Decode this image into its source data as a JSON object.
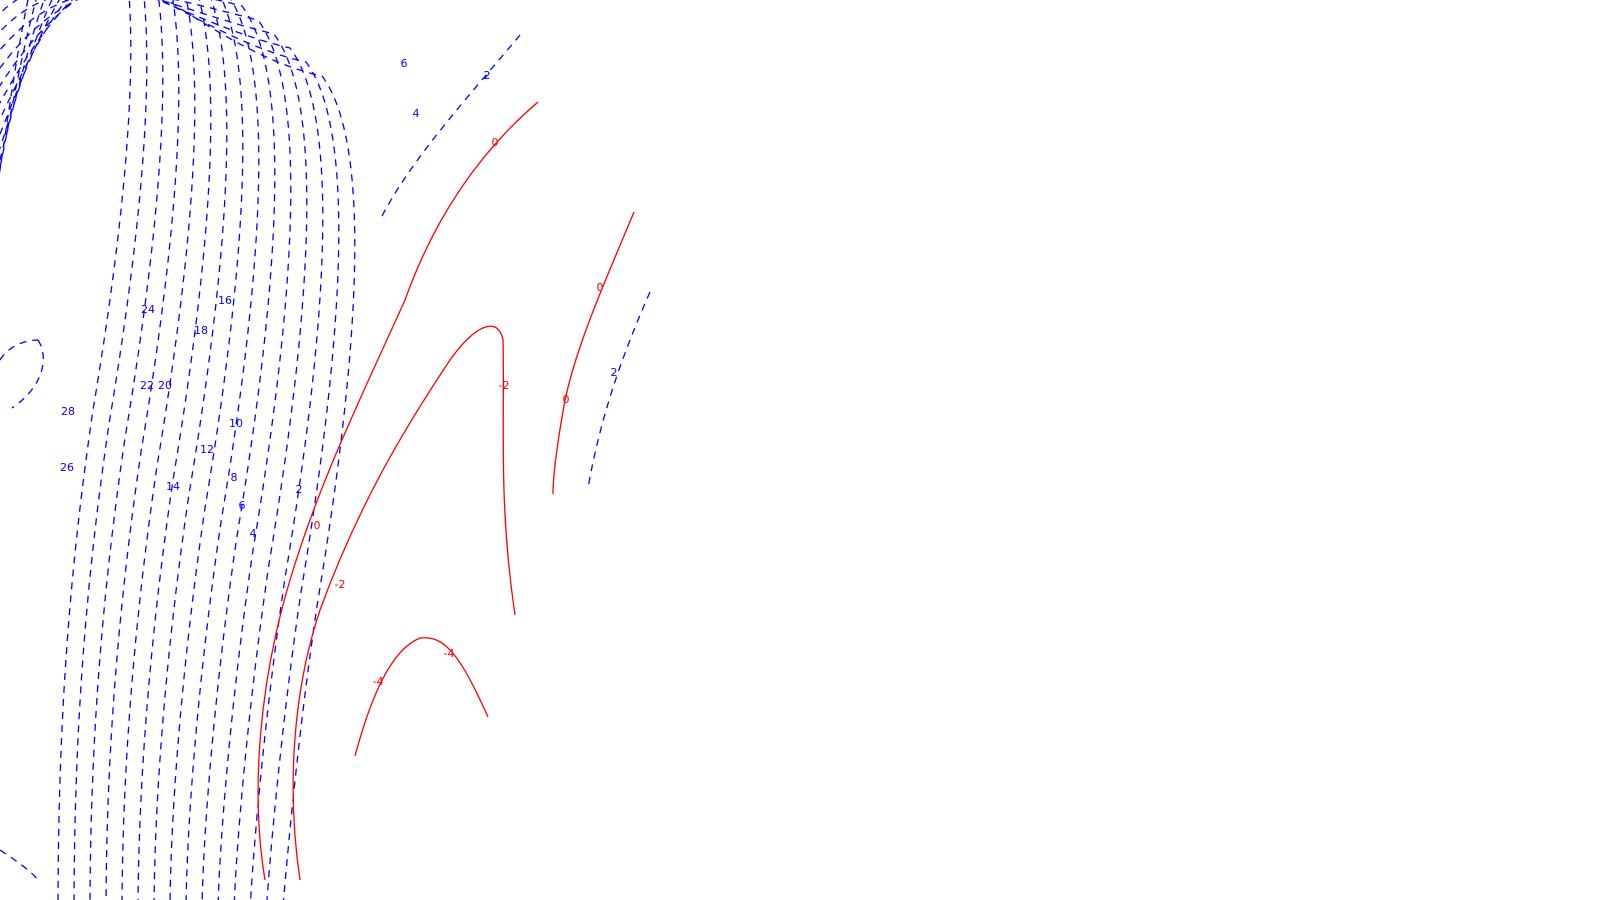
{
  "chart_data": {
    "type": "contour",
    "title": "",
    "xlabel": "",
    "ylabel": "",
    "grid": false,
    "legend": "none",
    "colors": {
      "positive": "#0000ff",
      "zero_and_negative": "#ff0000"
    },
    "line_styles": {
      "positive": "dashed",
      "zero_and_negative": "solid"
    },
    "contour_levels": [
      -4,
      -2,
      0,
      2,
      4,
      6,
      8,
      10,
      12,
      14,
      16,
      18,
      20,
      22,
      24,
      26,
      28
    ],
    "contour_labels": [
      "0",
      "2",
      "4",
      "6",
      "0",
      "16",
      "24",
      "18",
      "22",
      "20",
      "-2",
      "0",
      "2",
      "28",
      "10",
      "12",
      "26",
      "8",
      "14",
      "2",
      "6",
      "0",
      "4",
      "-2",
      "-4",
      "-4"
    ]
  }
}
